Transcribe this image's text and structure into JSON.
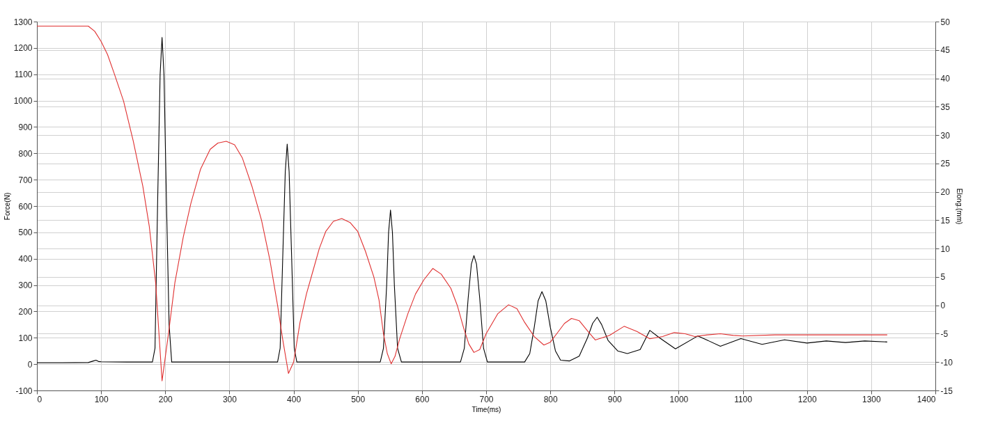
{
  "chart_data": {
    "type": "line",
    "xlabel": "Time(ms)",
    "ylabel": "Force(N)",
    "y2label": "Elong.(mm)",
    "xlim": [
      0,
      1400
    ],
    "xticks": [
      0,
      100,
      200,
      300,
      400,
      500,
      600,
      700,
      800,
      900,
      1000,
      1100,
      1200,
      1300,
      1400
    ],
    "ylim": [
      -100,
      1300
    ],
    "yticks": [
      -100,
      0,
      100,
      200,
      300,
      400,
      500,
      600,
      700,
      800,
      900,
      1000,
      1100,
      1200,
      1300
    ],
    "y2lim": [
      -15,
      50
    ],
    "y2ticks": [
      -15,
      -10,
      -5,
      0,
      5,
      10,
      15,
      20,
      25,
      30,
      35,
      40,
      45,
      50
    ],
    "grid": true,
    "line_style": "solid",
    "marker": "none",
    "series": [
      {
        "color": "#000000",
        "x": [
          0,
          40,
          80,
          88,
          92,
          96,
          100,
          140,
          180,
          184,
          188,
          192,
          195,
          198,
          202,
          206,
          210,
          260,
          330,
          375,
          379,
          383,
          387,
          390,
          393,
          397,
          401,
          405,
          460,
          535,
          540,
          545,
          548,
          551,
          554,
          557,
          562,
          568,
          620,
          660,
          666,
          672,
          677,
          681,
          685,
          690,
          696,
          702,
          730,
          760,
          768,
          775,
          781,
          787,
          793,
          800,
          808,
          816,
          830,
          845,
          858,
          866,
          873,
          880,
          890,
          905,
          920,
          940,
          955,
          970,
          995,
          1030,
          1065,
          1097,
          1130,
          1165,
          1200,
          1230,
          1260,
          1290,
          1325
        ],
        "values": [
          5,
          5,
          6,
          12,
          15,
          10,
          9,
          8,
          8,
          60,
          600,
          1100,
          1240,
          1100,
          600,
          150,
          8,
          8,
          8,
          8,
          60,
          400,
          730,
          835,
          730,
          400,
          60,
          8,
          8,
          8,
          60,
          300,
          500,
          585,
          500,
          300,
          60,
          8,
          8,
          8,
          60,
          250,
          380,
          412,
          380,
          250,
          60,
          8,
          8,
          8,
          40,
          140,
          240,
          275,
          240,
          140,
          50,
          15,
          12,
          30,
          100,
          155,
          178,
          150,
          90,
          50,
          40,
          55,
          128,
          100,
          58,
          107,
          68,
          97,
          75,
          92,
          80,
          88,
          82,
          88,
          84
        ]
      },
      {
        "color": "#e03030",
        "axis": "y2",
        "x": [
          0,
          80,
          90,
          100,
          110,
          120,
          135,
          150,
          165,
          175,
          185,
          195,
          205,
          215,
          228,
          240,
          255,
          270,
          282,
          295,
          308,
          320,
          335,
          350,
          363,
          375,
          383,
          392,
          400,
          410,
          420,
          430,
          440,
          450,
          462,
          475,
          488,
          500,
          512,
          525,
          533,
          540,
          546,
          552,
          558,
          565,
          578,
          590,
          603,
          617,
          630,
          645,
          655,
          665,
          673,
          681,
          690,
          700,
          718,
          735,
          748,
          760,
          775,
          790,
          800,
          810,
          822,
          833,
          845,
          858,
          870,
          892,
          915,
          935,
          955,
          975,
          993,
          1010,
          1025,
          1045,
          1065,
          1085,
          1100,
          1150,
          1200,
          1250,
          1325
        ],
        "values": [
          49.2,
          49.2,
          48.3,
          46.5,
          44.2,
          41,
          36,
          29,
          21,
          14,
          4,
          -13.3,
          -5,
          4,
          12,
          18,
          24,
          27.5,
          28.6,
          28.9,
          28.3,
          26,
          21,
          15,
          8,
          0,
          -6,
          -12,
          -10,
          -3,
          2,
          6,
          10,
          13,
          14.8,
          15.3,
          14.6,
          13,
          9.5,
          5,
          1,
          -5,
          -8.5,
          -10.3,
          -9,
          -6,
          -1.5,
          2,
          4.5,
          6.5,
          5.5,
          3,
          0,
          -4,
          -6.8,
          -8.3,
          -7.8,
          -5,
          -1.5,
          0.1,
          -0.6,
          -3,
          -5.5,
          -7,
          -6.5,
          -5,
          -3.2,
          -2.3,
          -2.7,
          -4.5,
          -6.1,
          -5.3,
          -3.7,
          -4.6,
          -5.9,
          -5.5,
          -4.8,
          -5,
          -5.5,
          -5.2,
          -5.0,
          -5.3,
          -5.4,
          -5.2,
          -5.2,
          -5.2,
          -5.2
        ]
      }
    ]
  }
}
